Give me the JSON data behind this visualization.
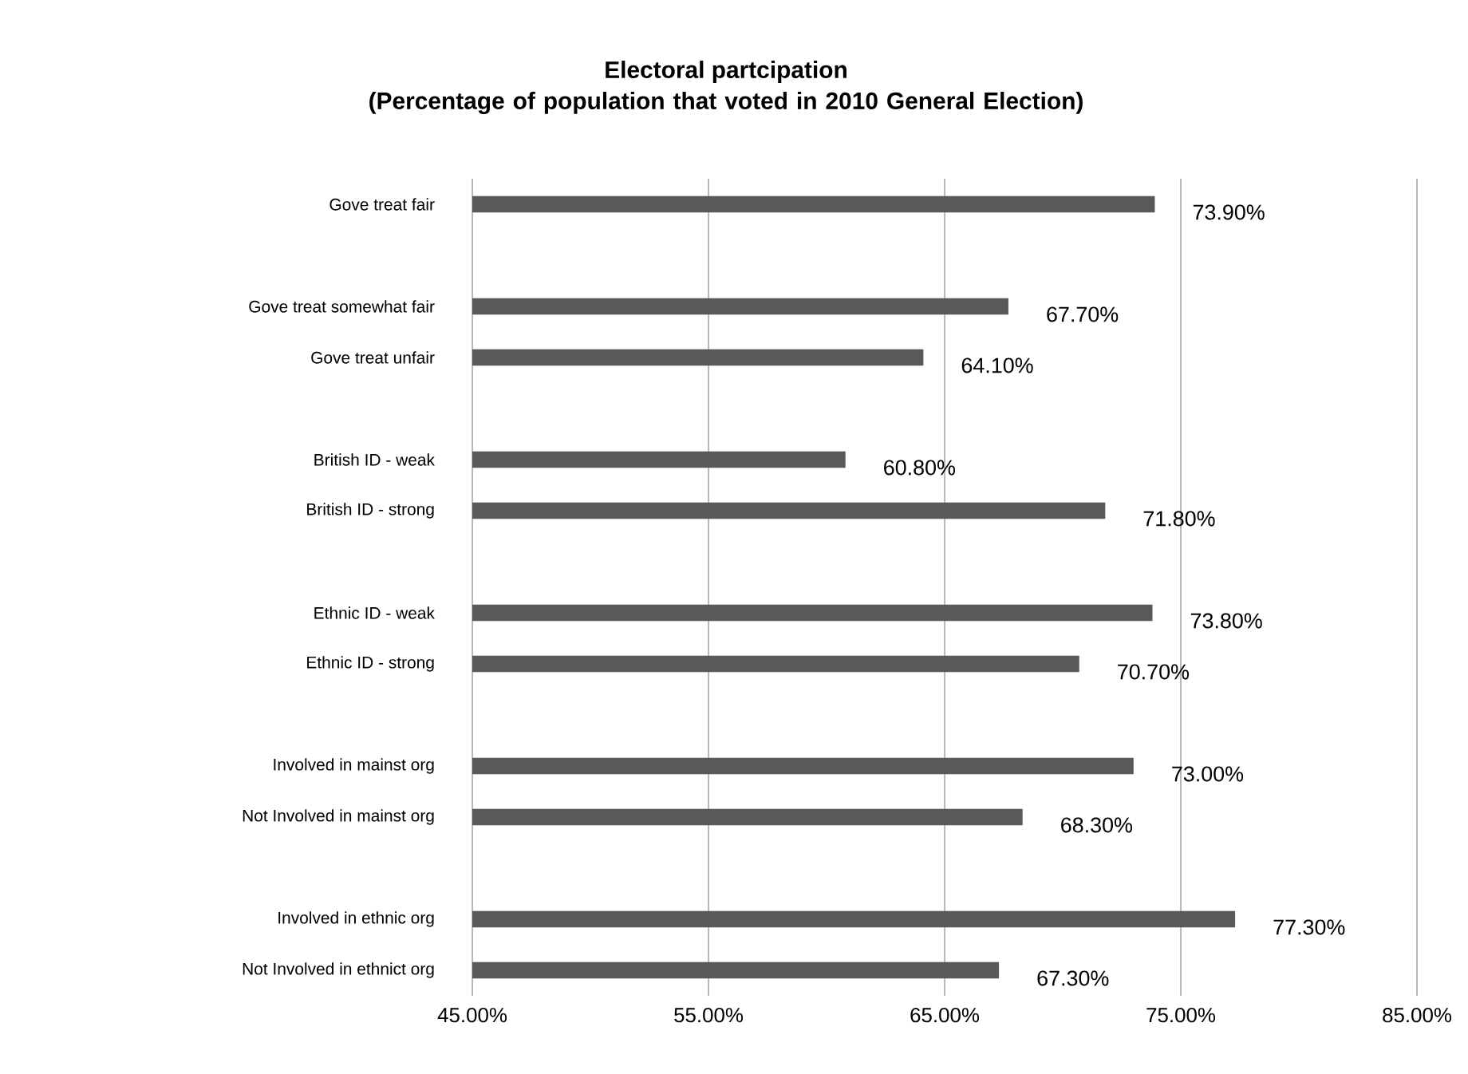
{
  "chart_data": {
    "type": "bar",
    "orientation": "horizontal",
    "title": "Electoral partcipation",
    "subtitle": "(Percentage of population that voted in 2010 General Election)",
    "categories": [
      "Gove treat fair",
      null,
      "Gove treat somewhat fair",
      "Gove treat unfair",
      null,
      "British ID - weak",
      "British ID - strong",
      null,
      "Ethnic ID - weak",
      "Ethnic ID - strong",
      null,
      "Involved in mainst org",
      "Not Involved in mainst org",
      null,
      "Involved in ethnic org",
      "Not Involved in ethnict org"
    ],
    "values": [
      73.9,
      null,
      67.7,
      64.1,
      null,
      60.8,
      71.8,
      null,
      73.8,
      70.7,
      null,
      73.0,
      68.3,
      null,
      77.3,
      67.3
    ],
    "value_labels": [
      "73.90%",
      null,
      "67.70%",
      "64.10%",
      null,
      "60.80%",
      "71.80%",
      null,
      "73.80%",
      "70.70%",
      null,
      "73.00%",
      "68.30%",
      null,
      "77.30%",
      "67.30%"
    ],
    "color": "#595959",
    "xlim": [
      45,
      85
    ],
    "xticks": [
      {
        "value": 45,
        "label": "45.00%"
      },
      {
        "value": 55,
        "label": "55.00%"
      },
      {
        "value": 65,
        "label": "65.00%"
      },
      {
        "value": 75,
        "label": "75.00%"
      },
      {
        "value": 85,
        "label": "85.00%"
      }
    ],
    "grid": "x"
  }
}
